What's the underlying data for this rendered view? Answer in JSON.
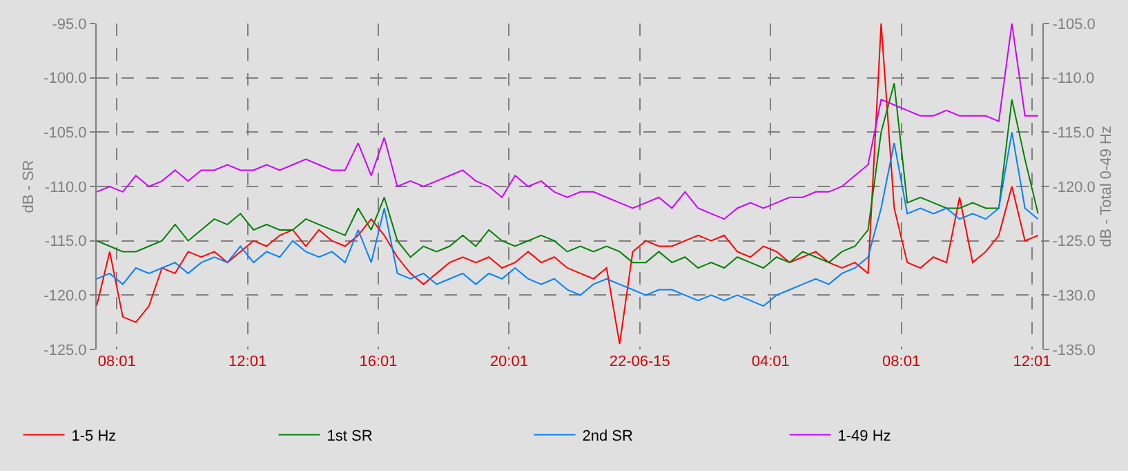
{
  "chart_data": {
    "type": "line",
    "xlabel": null,
    "ylabel": "dB - SR",
    "y2label": "dB - Total 0-49 Hz",
    "x": [
      "--06-21T07:24",
      "--06-21T07:48",
      "--06-21T08:12",
      "--06-21T08:36",
      "--06-21T09:00",
      "--06-21T09:24",
      "--06-21T09:48",
      "--06-21T10:12",
      "--06-21T10:36",
      "--06-21T11:00",
      "--06-21T11:24",
      "--06-21T11:48",
      "--06-21T12:12",
      "--06-21T12:36",
      "--06-21T13:00",
      "--06-21T13:24",
      "--06-21T13:48",
      "--06-21T14:12",
      "--06-21T14:36",
      "--06-21T15:00",
      "--06-21T15:24",
      "--06-21T15:48",
      "--06-21T16:12",
      "--06-21T16:36",
      "--06-21T17:00",
      "--06-21T17:24",
      "--06-21T17:48",
      "--06-21T18:12",
      "--06-21T18:36",
      "--06-21T19:00",
      "--06-21T19:24",
      "--06-21T19:48",
      "--06-21T20:12",
      "--06-21T20:36",
      "--06-21T21:00",
      "--06-21T21:24",
      "--06-21T21:48",
      "--06-21T22:12",
      "--06-21T22:36",
      "--06-21T23:00",
      "--06-21T23:24",
      "--06-21T23:48",
      "--06-22T00:12",
      "--06-22T00:36",
      "--06-22T01:00",
      "--06-22T01:24",
      "--06-22T01:48",
      "--06-22T02:12",
      "--06-22T02:36",
      "--06-22T03:00",
      "--06-22T03:24",
      "--06-22T03:48",
      "--06-22T04:12",
      "--06-22T04:36",
      "--06-22T05:00",
      "--06-22T05:24",
      "--06-22T05:48",
      "--06-22T06:12",
      "--06-22T06:36",
      "--06-22T07:00",
      "--06-22T07:24",
      "--06-22T07:48",
      "--06-22T08:12",
      "--06-22T08:36",
      "--06-22T09:00",
      "--06-22T09:24",
      "--06-22T09:48",
      "--06-22T10:12",
      "--06-22T10:36",
      "--06-22T11:00",
      "--06-22T11:24",
      "--06-22T11:48",
      "--06-22T12:12"
    ],
    "series": [
      {
        "name": "1-5 Hz",
        "color": "#ff0000",
        "values": [
          -121,
          -116,
          -122,
          -122.5,
          -121,
          -117.5,
          -118,
          -116,
          -116.5,
          -116,
          -117,
          -116,
          -115,
          -115.5,
          -114.5,
          -114,
          -115.5,
          -114,
          -115,
          -115.5,
          -114.5,
          -113,
          -114.5,
          -116.5,
          -118,
          -119,
          -118,
          -117,
          -116.5,
          -117,
          -116.5,
          -117.5,
          -117,
          -116,
          -117,
          -116.5,
          -117.5,
          -118,
          -118.5,
          -117.5,
          -124.5,
          -116,
          -115,
          -115.5,
          -115.5,
          -115,
          -114.5,
          -115,
          -114.5,
          -116,
          -116.5,
          -115.5,
          -116,
          -117,
          -116.5,
          -116,
          -117,
          -117.5,
          -117,
          -118,
          -95,
          -112,
          -117,
          -117.5,
          -116.5,
          -117,
          -111,
          -117,
          -116,
          -114.5,
          -110,
          -115,
          -114.5
        ]
      },
      {
        "name": "1st SR",
        "color": "#008000",
        "values": [
          -115,
          -115.5,
          -116,
          -116,
          -115.5,
          -115,
          -113.5,
          -115,
          -114,
          -113,
          -113.5,
          -112.5,
          -114,
          -113.5,
          -114,
          -114,
          -113,
          -113.5,
          -114,
          -114.5,
          -112,
          -114,
          -111,
          -115,
          -116.5,
          -115.5,
          -116,
          -115.5,
          -114.5,
          -115.5,
          -114,
          -115,
          -115.5,
          -115,
          -114.5,
          -115,
          -116,
          -115.5,
          -116,
          -115.5,
          -116,
          -117,
          -117,
          -116,
          -117,
          -116.5,
          -117.5,
          -117,
          -117.5,
          -116.5,
          -117,
          -117.5,
          -116.5,
          -117,
          -116,
          -116.5,
          -117,
          -116,
          -115.5,
          -114,
          -105,
          -100.5,
          -111.5,
          -111,
          -111.5,
          -112,
          -112,
          -111.5,
          -112,
          -112,
          -102,
          -107.5,
          -112.5
        ]
      },
      {
        "name": "2nd SR",
        "color": "#0080ff",
        "values": [
          -118.5,
          -118,
          -119,
          -117.5,
          -118,
          -117.5,
          -117,
          -118,
          -117,
          -116.5,
          -117,
          -115.5,
          -117,
          -116,
          -116.5,
          -115,
          -116,
          -116.5,
          -116,
          -117,
          -114,
          -117,
          -112,
          -118,
          -118.5,
          -118,
          -119,
          -118.5,
          -118,
          -119,
          -118,
          -118.5,
          -117.5,
          -118.5,
          -119,
          -118.5,
          -119.5,
          -120,
          -119,
          -118.5,
          -119,
          -119.5,
          -120,
          -119.5,
          -119.5,
          -120,
          -120.5,
          -120,
          -120.5,
          -120,
          -120.5,
          -121,
          -120,
          -119.5,
          -119,
          -118.5,
          -119,
          -118,
          -117.5,
          -116.5,
          -112,
          -106,
          -112.5,
          -112,
          -112.5,
          -112,
          -113,
          -112.5,
          -113,
          -112,
          -105,
          -112,
          -113
        ]
      },
      {
        "name": "1-49 Hz",
        "color": "#cc00ff",
        "axis": "y2",
        "values": [
          -120.5,
          -120,
          -120.5,
          -119,
          -120,
          -119.5,
          -118.5,
          -119.5,
          -118.5,
          -118.5,
          -118,
          -118.5,
          -118.5,
          -118,
          -118.5,
          -118,
          -117.5,
          -118,
          -118.5,
          -118.5,
          -116,
          -119,
          -115.5,
          -120,
          -119.5,
          -120,
          -119.5,
          -119,
          -118.5,
          -119.5,
          -120,
          -121,
          -119,
          -120,
          -119.5,
          -120.5,
          -121,
          -120.5,
          -120.5,
          -121,
          -121.5,
          -122,
          -121.5,
          -121,
          -122,
          -120.5,
          -122,
          -122.5,
          -123,
          -122,
          -121.5,
          -122,
          -121.5,
          -121,
          -121,
          -120.5,
          -120.5,
          -120,
          -119,
          -118,
          -112,
          -112.5,
          -113,
          -113.5,
          -113.5,
          -113,
          -113.5,
          -113.5,
          -113.5,
          -114,
          -105,
          -113.5,
          -113.5
        ]
      }
    ],
    "xlim": [
      "--06-21T07:24",
      "--06-22T12:20"
    ],
    "xticks": [
      {
        "value": "--06-21T08:01",
        "label": "08:01"
      },
      {
        "value": "--06-21T12:01",
        "label": "12:01"
      },
      {
        "value": "--06-21T16:01",
        "label": "16:01"
      },
      {
        "value": "--06-21T20:01",
        "label": "20:01"
      },
      {
        "value": "--06-22T00:01",
        "label": "22-06-15"
      },
      {
        "value": "--06-22T04:01",
        "label": "04:01"
      },
      {
        "value": "--06-22T08:01",
        "label": "08:01"
      },
      {
        "value": "--06-22T12:01",
        "label": "12:01"
      }
    ],
    "ylim": [
      -125,
      -95
    ],
    "yticks": [
      {
        "value": -125,
        "label": "-125.0"
      },
      {
        "value": -120,
        "label": "-120.0"
      },
      {
        "value": -115,
        "label": "-115.0"
      },
      {
        "value": -110,
        "label": "-110.0"
      },
      {
        "value": -105,
        "label": "-105.0"
      },
      {
        "value": -100,
        "label": "-100.0"
      },
      {
        "value": -95,
        "label": "-95.0"
      }
    ],
    "y2lim": [
      -135,
      -105
    ],
    "y2ticks": [
      {
        "value": -135,
        "label": "-135.0"
      },
      {
        "value": -130,
        "label": "-130.0"
      },
      {
        "value": -125,
        "label": "-125.0"
      },
      {
        "value": -120,
        "label": "-120.0"
      },
      {
        "value": -115,
        "label": "-115.0"
      },
      {
        "value": -110,
        "label": "-110.0"
      },
      {
        "value": -105,
        "label": "-105.0"
      }
    ],
    "grid": true,
    "legend": "bottom",
    "marker": "none",
    "line_style": "solid"
  }
}
